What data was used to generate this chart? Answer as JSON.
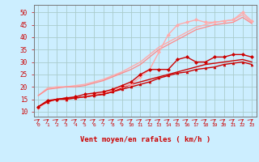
{
  "background_color": "#cceeff",
  "grid_color": "#aacccc",
  "ylabel_values": [
    10,
    15,
    20,
    25,
    30,
    35,
    40,
    45,
    50
  ],
  "xlabel": "Vent moyen/en rafales ( km/h )",
  "xlabel_color": "#cc0000",
  "tick_color": "#cc0000",
  "x_ticks": [
    0,
    1,
    2,
    3,
    4,
    5,
    6,
    7,
    8,
    9,
    10,
    11,
    12,
    13,
    14,
    15,
    16,
    17,
    18,
    19,
    20,
    21,
    22,
    23
  ],
  "ylim": [
    8,
    53
  ],
  "xlim": [
    -0.5,
    23.5
  ],
  "series": [
    {
      "x": [
        0,
        1,
        2,
        3,
        4,
        5,
        6,
        7,
        8,
        9,
        10,
        11,
        12,
        13,
        14,
        15,
        16,
        17,
        18,
        19,
        20,
        21,
        22,
        23
      ],
      "y": [
        16.5,
        19.5,
        20,
        20,
        20.5,
        21,
        22,
        23,
        24.5,
        26,
        28,
        30,
        33,
        36,
        38,
        40,
        42,
        44,
        45,
        46,
        46.5,
        47,
        49,
        46
      ],
      "color": "#ffaaaa",
      "linewidth": 1.0,
      "marker": null,
      "markersize": 0
    },
    {
      "x": [
        0,
        1,
        2,
        3,
        4,
        5,
        6,
        7,
        8,
        9,
        10,
        11,
        12,
        13,
        14,
        15,
        16,
        17,
        18,
        19,
        20,
        21,
        22,
        23
      ],
      "y": [
        11.5,
        14,
        15,
        15,
        15.5,
        16,
        17,
        17.5,
        18.5,
        20,
        21,
        24,
        27,
        34,
        41,
        45,
        46,
        47,
        46,
        46,
        46.5,
        47,
        50,
        46.5
      ],
      "color": "#ffaaaa",
      "linewidth": 1.0,
      "marker": "D",
      "markersize": 2.0
    },
    {
      "x": [
        0,
        1,
        2,
        3,
        4,
        5,
        6,
        7,
        8,
        9,
        10,
        11,
        12,
        13,
        14,
        15,
        16,
        17,
        18,
        19,
        20,
        21,
        22,
        23
      ],
      "y": [
        16.5,
        19.0,
        19.5,
        20,
        20,
        20.5,
        21.5,
        22.5,
        24,
        25.5,
        27,
        29,
        32,
        35,
        37,
        39,
        41,
        43,
        44,
        45,
        45.5,
        46,
        48,
        45.5
      ],
      "color": "#ff8888",
      "linewidth": 0.9,
      "marker": null,
      "markersize": 0
    },
    {
      "x": [
        0,
        1,
        2,
        3,
        4,
        5,
        6,
        7,
        8,
        9,
        10,
        11,
        12,
        13,
        14,
        15,
        16,
        17,
        18,
        19,
        20,
        21,
        22,
        23
      ],
      "y": [
        12,
        14.5,
        15,
        15.5,
        16,
        17,
        17.5,
        18,
        19,
        20.5,
        22,
        25,
        27,
        27,
        27,
        31,
        32,
        30,
        30,
        32,
        32,
        33,
        33,
        32
      ],
      "color": "#cc0000",
      "linewidth": 1.0,
      "marker": "D",
      "markersize": 2.0
    },
    {
      "x": [
        0,
        1,
        2,
        3,
        4,
        5,
        6,
        7,
        8,
        9,
        10,
        11,
        12,
        13,
        14,
        15,
        16,
        17,
        18,
        19,
        20,
        21,
        22,
        23
      ],
      "y": [
        12,
        14,
        15,
        15.5,
        15.5,
        16,
        16.5,
        17,
        18,
        19.5,
        21,
        22,
        23,
        24,
        25,
        26,
        27,
        28,
        29,
        29.5,
        30,
        30.5,
        31,
        30
      ],
      "color": "#cc0000",
      "linewidth": 1.0,
      "marker": null,
      "markersize": 0
    },
    {
      "x": [
        0,
        1,
        2,
        3,
        4,
        5,
        6,
        7,
        8,
        9,
        10,
        11,
        12,
        13,
        14,
        15,
        16,
        17,
        18,
        19,
        20,
        21,
        22,
        23
      ],
      "y": [
        12,
        14,
        15,
        15,
        15.5,
        16,
        16.5,
        17,
        18,
        19,
        20,
        21,
        22,
        23.5,
        24.5,
        25.5,
        26,
        27,
        27.5,
        28,
        29,
        29.5,
        30,
        29
      ],
      "color": "#cc0000",
      "linewidth": 1.0,
      "marker": "^",
      "markersize": 2.0
    }
  ]
}
